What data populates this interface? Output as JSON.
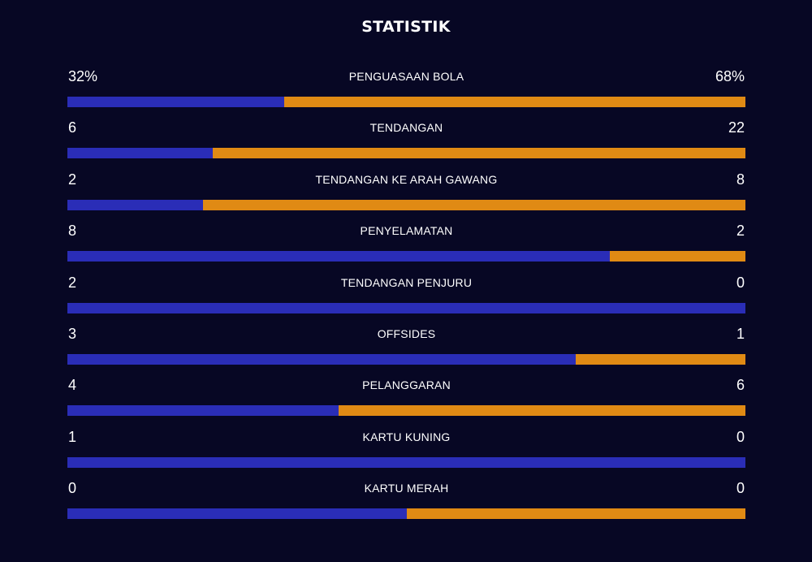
{
  "title": "STATISTIK",
  "colors": {
    "background": "#070724",
    "home_bar": "#2a2db7",
    "away_bar": "#e08a14"
  },
  "stats": [
    {
      "label": "PENGUASAAN BOLA",
      "home": "32%",
      "away": "68%",
      "home_share": 0.32
    },
    {
      "label": "TENDANGAN",
      "home": "6",
      "away": "22",
      "home_share": 0.214
    },
    {
      "label": "TENDANGAN KE ARAH GAWANG",
      "home": "2",
      "away": "8",
      "home_share": 0.2
    },
    {
      "label": "PENYELAMATAN",
      "home": "8",
      "away": "2",
      "home_share": 0.8
    },
    {
      "label": "TENDANGAN PENJURU",
      "home": "2",
      "away": "0",
      "home_share": 1.0
    },
    {
      "label": "OFFSIDES",
      "home": "3",
      "away": "1",
      "home_share": 0.75
    },
    {
      "label": "PELANGGARAN",
      "home": "4",
      "away": "6",
      "home_share": 0.4
    },
    {
      "label": "KARTU KUNING",
      "home": "1",
      "away": "0",
      "home_share": 1.0
    },
    {
      "label": "KARTU MERAH",
      "home": "0",
      "away": "0",
      "home_share": 0.5
    }
  ]
}
